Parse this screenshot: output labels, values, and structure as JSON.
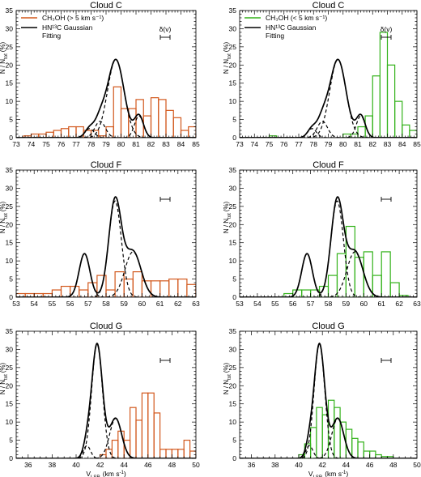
{
  "colors": {
    "orange": "#d2581c",
    "green": "#33b21a",
    "gauss": "#000000"
  },
  "labels": {
    "ylabel": "N / N",
    "ylabel_sub": "tot",
    "ylabel_unit": "(%)",
    "xlabel": "V",
    "xlabel_sub": "LSR",
    "xlabel_unit": "(km s",
    "xlabel_sup": "-1",
    "xlabel_end": ")",
    "delta": "δ(v)"
  },
  "legend": {
    "left_series": "CH₃OH (> 5 km s⁻¹)",
    "right_series": "CH₃OH (< 5 km s⁻¹)",
    "gauss_line1": "HN¹³C Gaussian",
    "gauss_line2": "Fitting"
  },
  "chart_data": [
    {
      "type": "bar",
      "title": "Cloud C",
      "series": "CH3OH (> 5 km/s)",
      "color": "orange",
      "xlim": [
        73,
        85
      ],
      "ylim": [
        0,
        35
      ],
      "xticks": [
        73,
        74,
        75,
        76,
        77,
        78,
        79,
        80,
        81,
        82,
        83,
        84,
        85
      ],
      "yticks": [
        0,
        5,
        10,
        15,
        20,
        25,
        30,
        35
      ],
      "bin_start": 73,
      "bin_width": 0.5,
      "values": [
        0,
        0.5,
        1,
        1,
        1.5,
        2,
        2.5,
        3,
        3,
        2,
        2,
        0.5,
        3,
        14,
        8,
        8,
        10.5,
        6,
        11,
        10.5,
        7.5,
        5.5,
        2,
        3,
        0.5,
        1.5,
        2.5,
        2,
        2,
        2,
        2,
        1.5,
        2,
        1.5
      ],
      "gaussians": [
        [
          77.9,
          2.5,
          0.3
        ],
        [
          78.6,
          4.5,
          0.35
        ],
        [
          79.65,
          21.5,
          0.55
        ],
        [
          81.2,
          6,
          0.3
        ]
      ],
      "show_legend": true,
      "show_delta": true
    },
    {
      "type": "bar",
      "title": "Cloud C",
      "series": "CH3OH (< 5 km/s)",
      "color": "green",
      "xlim": [
        73,
        85
      ],
      "ylim": [
        0,
        35
      ],
      "xticks": [
        73,
        74,
        75,
        76,
        77,
        78,
        79,
        80,
        81,
        82,
        83,
        84,
        85
      ],
      "yticks": [
        0,
        5,
        10,
        15,
        20,
        25,
        30,
        35
      ],
      "bin_start": 73,
      "bin_width": 0.5,
      "values": [
        0,
        0,
        0,
        0,
        0.5,
        0,
        0,
        0,
        0,
        0,
        0,
        0,
        0,
        0,
        1,
        1,
        3,
        6,
        17,
        29,
        20,
        10,
        3.5,
        2,
        0.5,
        0.5,
        0.5,
        0,
        0,
        0,
        0,
        0,
        0,
        0
      ],
      "gaussians": [
        [
          77.9,
          2.5,
          0.3
        ],
        [
          78.6,
          4.5,
          0.35
        ],
        [
          79.65,
          21.5,
          0.55
        ],
        [
          81.2,
          6,
          0.3
        ]
      ],
      "show_legend": true,
      "show_delta": true
    },
    {
      "type": "bar",
      "title": "Cloud F",
      "series": "CH3OH (> 5 km/s)",
      "color": "orange",
      "xlim": [
        53,
        63
      ],
      "ylim": [
        0,
        35
      ],
      "xticks": [
        53,
        54,
        55,
        56,
        57,
        58,
        59,
        60,
        61,
        62,
        63
      ],
      "yticks": [
        0,
        5,
        10,
        15,
        20,
        25,
        30,
        35
      ],
      "bin_start": 53,
      "bin_width": 0.5,
      "values": [
        1,
        1,
        1,
        1,
        2,
        3,
        3,
        2,
        4,
        6,
        2,
        7,
        5,
        7,
        4.5,
        4.5,
        4.5,
        5,
        5,
        3.5,
        3,
        3,
        1,
        1.5,
        4,
        4,
        4
      ],
      "gaussians": [
        [
          56.8,
          12,
          0.3
        ],
        [
          58.5,
          26.5,
          0.35
        ],
        [
          59.5,
          12.5,
          0.45
        ]
      ],
      "show_legend": false,
      "show_delta": true
    },
    {
      "type": "bar",
      "title": "Cloud F",
      "series": "CH3OH (< 5 km/s)",
      "color": "green",
      "xlim": [
        53,
        63
      ],
      "ylim": [
        0,
        35
      ],
      "xticks": [
        53,
        54,
        55,
        56,
        57,
        58,
        59,
        60,
        61,
        62,
        63
      ],
      "yticks": [
        0,
        5,
        10,
        15,
        20,
        25,
        30,
        35
      ],
      "bin_start": 53,
      "bin_width": 0.5,
      "values": [
        0,
        0,
        0,
        0,
        0,
        1,
        2,
        2,
        2,
        3,
        6,
        12,
        19.5,
        11,
        12.5,
        6,
        12.5,
        4,
        0.5,
        0,
        0,
        0.5,
        0,
        0,
        0,
        0,
        0
      ],
      "gaussians": [
        [
          56.8,
          12,
          0.3
        ],
        [
          58.5,
          26.5,
          0.35
        ],
        [
          59.5,
          12.5,
          0.45
        ]
      ],
      "show_legend": false,
      "show_delta": true
    },
    {
      "type": "bar",
      "title": "Cloud G",
      "series": "CH3OH (> 5 km/s)",
      "color": "orange",
      "xlim": [
        35,
        50
      ],
      "ylim": [
        0,
        35
      ],
      "xticks": [
        36,
        38,
        40,
        42,
        44,
        46,
        48,
        50
      ],
      "yticks": [
        0,
        5,
        10,
        15,
        20,
        25,
        30,
        35
      ],
      "bin_start": 35,
      "bin_width": 0.5,
      "values": [
        0,
        0,
        0,
        0,
        0,
        0,
        0,
        0,
        0,
        0,
        0,
        0,
        0,
        0,
        1,
        2.5,
        5,
        7.5,
        5,
        14,
        10.5,
        18,
        18,
        12.5,
        2.5,
        2.5,
        2.5,
        2.5,
        5,
        2,
        0
      ],
      "gaussians": [
        [
          40.9,
          3.5,
          0.3
        ],
        [
          41.75,
          31.5,
          0.45
        ],
        [
          43.3,
          11,
          0.5
        ]
      ],
      "show_legend": false,
      "show_delta": true
    },
    {
      "type": "bar",
      "title": "Cloud G",
      "series": "CH3OH (< 5 km/s)",
      "color": "green",
      "xlim": [
        35,
        50
      ],
      "ylim": [
        0,
        35
      ],
      "xticks": [
        36,
        38,
        40,
        42,
        44,
        46,
        48,
        50
      ],
      "yticks": [
        0,
        5,
        10,
        15,
        20,
        25,
        30,
        35
      ],
      "bin_start": 35,
      "bin_width": 0.5,
      "values": [
        0,
        0,
        0,
        0,
        0,
        0,
        0,
        0,
        0,
        0,
        1,
        4,
        8.5,
        14,
        12,
        16,
        14,
        10,
        8,
        5.5,
        4.5,
        2,
        2,
        1,
        0.5,
        0.5,
        0,
        0,
        0,
        0
      ],
      "gaussians": [
        [
          40.9,
          3.5,
          0.3
        ],
        [
          41.75,
          31.5,
          0.45
        ],
        [
          43.3,
          11,
          0.5
        ]
      ],
      "show_legend": false,
      "show_delta": true
    }
  ]
}
